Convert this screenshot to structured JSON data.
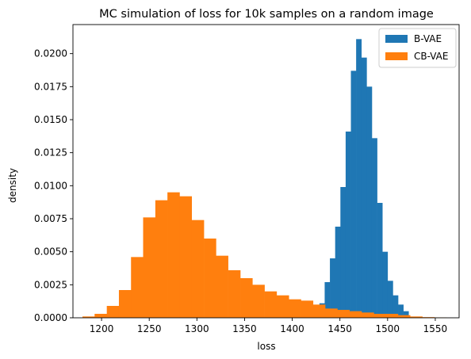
{
  "chart_data": {
    "type": "bar",
    "title": "MC simulation of loss for 10k samples on a random image",
    "xlabel": "loss",
    "ylabel": "density",
    "xlim": [
      1170,
      1575
    ],
    "ylim": [
      0,
      0.0222
    ],
    "xticks": [
      1200,
      1250,
      1300,
      1350,
      1400,
      1450,
      1500,
      1550
    ],
    "xtick_labels": [
      "1200",
      "1250",
      "1300",
      "1350",
      "1400",
      "1450",
      "1500",
      "1550"
    ],
    "yticks": [
      0,
      0.0025,
      0.005,
      0.0075,
      0.01,
      0.0125,
      0.015,
      0.0175,
      0.02
    ],
    "ytick_labels": [
      "0.0000",
      "0.0025",
      "0.0050",
      "0.0075",
      "0.0100",
      "0.0125",
      "0.0150",
      "0.0175",
      "0.0200"
    ],
    "grid": false,
    "legend": {
      "placement": "top-right",
      "entries": [
        {
          "name": "B-VAE",
          "color": "#1f77b4"
        },
        {
          "name": "CB-VAE",
          "color": "#ff7f0e"
        }
      ]
    },
    "series": [
      {
        "name": "B-VAE",
        "color": "#1f77b4",
        "bin_edges": [
          1423,
          1428.5,
          1434,
          1439.5,
          1445,
          1450.5,
          1456,
          1461.5,
          1467,
          1472.5,
          1478,
          1483.5,
          1489,
          1494.5,
          1500,
          1505.5,
          1511,
          1516.5,
          1522
        ],
        "values": [
          0.0003,
          0.0011,
          0.0027,
          0.0045,
          0.0069,
          0.0099,
          0.0141,
          0.0187,
          0.0211,
          0.0197,
          0.0175,
          0.0136,
          0.0087,
          0.005,
          0.0028,
          0.0017,
          0.001,
          0.0005
        ]
      },
      {
        "name": "CB-VAE",
        "color": "#ff7f0e",
        "bin_edges": [
          1180.0,
          1192.7,
          1205.5,
          1218.2,
          1230.9,
          1243.6,
          1256.4,
          1269.1,
          1281.8,
          1294.5,
          1307.3,
          1320.0,
          1332.7,
          1345.5,
          1358.2,
          1370.9,
          1383.6,
          1396.4,
          1409.1,
          1421.8,
          1434.5,
          1447.3,
          1460.0,
          1472.7,
          1485.5,
          1498.2,
          1510.9,
          1523.6,
          1536.4,
          1549.1,
          1561.8
        ],
        "values": [
          0.0001,
          0.0003,
          0.0009,
          0.0021,
          0.0046,
          0.0076,
          0.0089,
          0.0095,
          0.0092,
          0.0074,
          0.006,
          0.0047,
          0.0036,
          0.003,
          0.0025,
          0.002,
          0.0017,
          0.0014,
          0.0013,
          0.001,
          0.0007,
          0.0006,
          0.0005,
          0.0004,
          0.0003,
          0.0003,
          0.0002,
          0.0001,
          5e-05,
          3e-05
        ]
      }
    ]
  }
}
